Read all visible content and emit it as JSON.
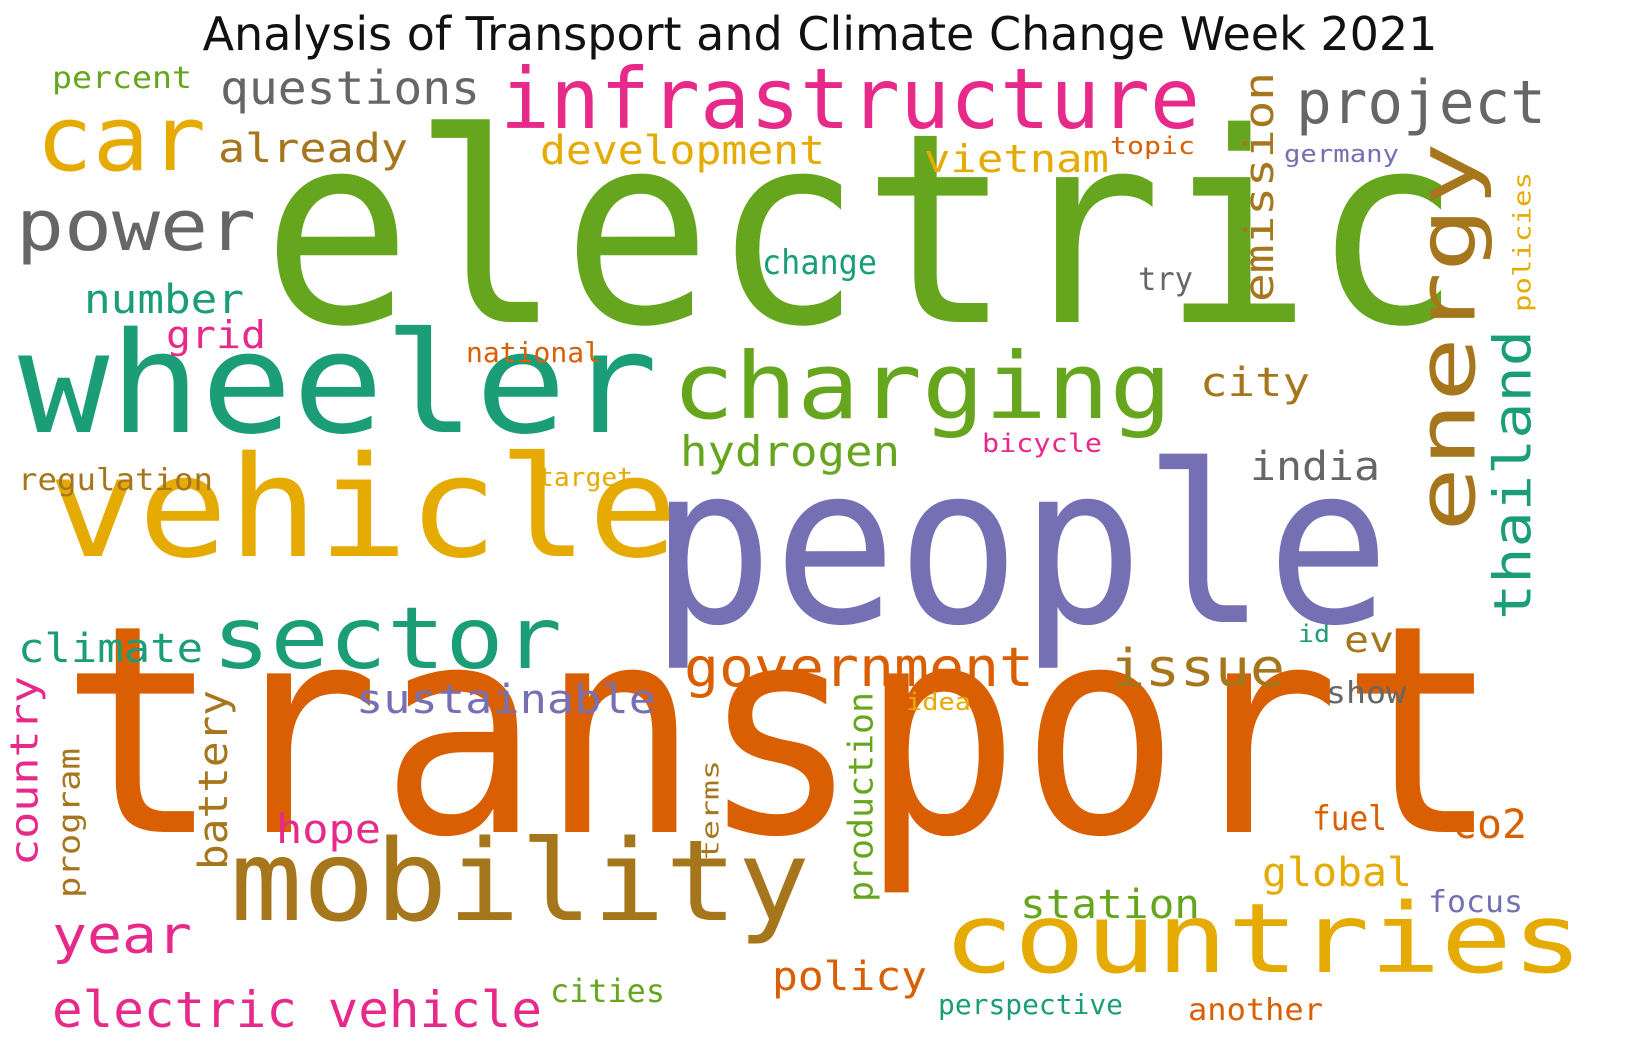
{
  "title": "Analysis of Transport and Climate Change Week 2021",
  "words": [
    {
      "text": "electric",
      "color": "#66a61e"
    },
    {
      "text": "transport",
      "color": "#d95f02"
    },
    {
      "text": "people",
      "color": "#7570b3"
    },
    {
      "text": "wheeler",
      "color": "#1b9e77"
    },
    {
      "text": "vehicle",
      "color": "#e6ab02"
    },
    {
      "text": "mobility",
      "color": "#a6761d"
    },
    {
      "text": "infrastructure",
      "color": "#e7298a"
    },
    {
      "text": "charging",
      "color": "#66a61e"
    },
    {
      "text": "countries",
      "color": "#e6ab02"
    },
    {
      "text": "sector",
      "color": "#1b9e77"
    },
    {
      "text": "energy",
      "color": "#a6761d"
    },
    {
      "text": "car",
      "color": "#e6ab02"
    },
    {
      "text": "power",
      "color": "#666666"
    },
    {
      "text": "project",
      "color": "#666666"
    },
    {
      "text": "government",
      "color": "#d95f02"
    },
    {
      "text": "questions",
      "color": "#666666"
    },
    {
      "text": "thailand",
      "color": "#1b9e77"
    },
    {
      "text": "electric vehicle",
      "color": "#e7298a"
    },
    {
      "text": "issue",
      "color": "#a6761d"
    },
    {
      "text": "year",
      "color": "#e7298a"
    },
    {
      "text": "hydrogen",
      "color": "#66a61e"
    },
    {
      "text": "development",
      "color": "#e6ab02"
    },
    {
      "text": "sustainable",
      "color": "#7570b3"
    },
    {
      "text": "emission",
      "color": "#a6761d"
    },
    {
      "text": "already",
      "color": "#a6761d"
    },
    {
      "text": "climate",
      "color": "#1b9e77"
    },
    {
      "text": "vietnam",
      "color": "#e6ab02"
    },
    {
      "text": "city",
      "color": "#a6761d"
    },
    {
      "text": "india",
      "color": "#666666"
    },
    {
      "text": "global",
      "color": "#e6ab02"
    },
    {
      "text": "policy",
      "color": "#d95f02"
    },
    {
      "text": "station",
      "color": "#66a61e"
    },
    {
      "text": "number",
      "color": "#1b9e77"
    },
    {
      "text": "battery",
      "color": "#a6761d"
    },
    {
      "text": "country",
      "color": "#e7298a"
    },
    {
      "text": "co2",
      "color": "#d95f02"
    },
    {
      "text": "hope",
      "color": "#e7298a"
    },
    {
      "text": "grid",
      "color": "#e7298a"
    },
    {
      "text": "production",
      "color": "#66a61e"
    },
    {
      "text": "change",
      "color": "#1b9e77"
    },
    {
      "text": "ev",
      "color": "#a6761d"
    },
    {
      "text": "fuel",
      "color": "#d95f02"
    },
    {
      "text": "regulation",
      "color": "#a6761d"
    },
    {
      "text": "cities",
      "color": "#66a61e"
    },
    {
      "text": "program",
      "color": "#a6761d"
    },
    {
      "text": "focus",
      "color": "#7570b3"
    },
    {
      "text": "try",
      "color": "#666666"
    },
    {
      "text": "show",
      "color": "#666666"
    },
    {
      "text": "another",
      "color": "#d95f02"
    },
    {
      "text": "national",
      "color": "#d95f02"
    },
    {
      "text": "percent",
      "color": "#66a61e"
    },
    {
      "text": "perspective",
      "color": "#1b9e77"
    },
    {
      "text": "target",
      "color": "#e6ab02"
    },
    {
      "text": "bicycle",
      "color": "#e7298a"
    },
    {
      "text": "policies",
      "color": "#e6ab02"
    },
    {
      "text": "topic",
      "color": "#d95f02"
    },
    {
      "text": "germany",
      "color": "#7570b3"
    },
    {
      "text": "terms",
      "color": "#a6761d"
    },
    {
      "text": "idea",
      "color": "#e6ab02"
    },
    {
      "text": "id",
      "color": "#1b9e77"
    }
  ]
}
